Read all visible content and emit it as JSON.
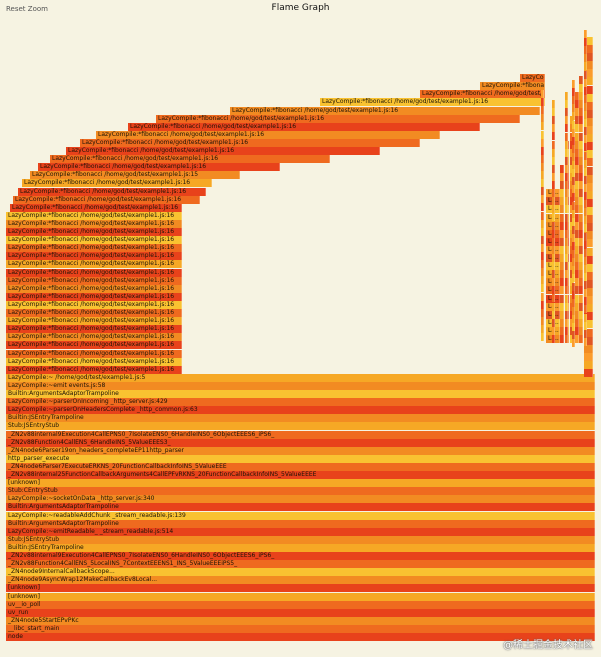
{
  "toolbar": {
    "reset_zoom_label": "Reset Zoom",
    "title": "Flame Graph"
  },
  "watermark": "@稀土掘金技术社区",
  "palette": [
    "#e8421b",
    "#ef6a1f",
    "#f28b22",
    "#f6a825",
    "#f9c231",
    "#e05622",
    "#fb9c2c"
  ],
  "frames_bottom_up": [
    {
      "label": "node",
      "shade": 0
    },
    {
      "label": "__libc_start_main",
      "shade": 1
    },
    {
      "label": "_ZN4node5StartEPvPKc",
      "shade": 2
    },
    {
      "label": "uv_run",
      "shade": 0
    },
    {
      "label": "uv__io_poll",
      "shade": 1
    },
    {
      "label": "[unknown]",
      "shade": 3
    },
    {
      "label": "[unknown]",
      "shade": 0
    },
    {
      "label": "_ZN4node9AsyncWrap12MakeCallbackEv8Local...",
      "shade": 2
    },
    {
      "label": "_ZN4node9InternalCallbackScope...",
      "shade": 4
    },
    {
      "label": "_ZN2v88Function4CallENS_5LocalINS_7ContextEEENS1_INS_5ValueEEEiPS5_",
      "shade": 1
    },
    {
      "label": "_ZN2v88internal9Execution4CallEPNS0_7IsolateENS0_6HandleINS0_6ObjectEEES6_iPS6_",
      "shade": 0
    },
    {
      "label": "Builtin:JSEntryTrampoline",
      "shade": 3
    },
    {
      "label": "Stub:JSEntryStub",
      "shade": 2
    },
    {
      "label": "LazyCompile:~emitReadable_ _stream_readable.js:514",
      "shade": 0
    },
    {
      "label": "Builtin:ArgumentsAdaptorTrampoline",
      "shade": 1
    },
    {
      "label": "LazyCompile:~readableAddChunk _stream_readable.js:139",
      "shade": 4
    },
    {
      "label": "Builtin:ArgumentsAdaptorTrampoline",
      "shade": 0
    },
    {
      "label": "LazyCompile:~socketOnData _http_server.js:340",
      "shade": 2
    },
    {
      "label": "Stub:CEntryStub",
      "shade": 1
    },
    {
      "label": "[unknown]",
      "shade": 3
    },
    {
      "label": "_ZN2v88internal25FunctionCallbackArguments4CallEPFvRKNS_20FunctionCallbackInfoINS_5ValueEEEE",
      "shade": 0
    },
    {
      "label": "_ZN4node6Parser7ExecuteERKNS_20FunctionCallbackInfoINS_5ValueEEE",
      "shade": 1
    },
    {
      "label": "http_parser_execute",
      "shade": 4
    },
    {
      "label": "_ZN4node6Parser19on_headers_completeEP11http_parser",
      "shade": 2
    },
    {
      "label": "_ZN2v88Function4CallENS_6HandleINS_5ValueEEES3_",
      "shade": 0
    },
    {
      "label": "_ZN2v88internal9Execution4CallEPNS0_7IsolateENS0_6HandleINS0_6ObjectEEES6_iPS6_",
      "shade": 1
    },
    {
      "label": "Stub:JSEntryStub",
      "shade": 3
    },
    {
      "label": "Builtin:JSEntryTrampoline",
      "shade": 2
    },
    {
      "label": "LazyCompile:~parserOnHeadersComplete _http_common.js:63",
      "shade": 0
    },
    {
      "label": "LazyCompile:~parserOnIncoming _http_server.js:429",
      "shade": 1
    },
    {
      "label": "Builtin:ArgumentsAdaptorTrampoline",
      "shade": 4
    },
    {
      "label": "LazyCompile:~emit events.js:58",
      "shade": 2
    },
    {
      "label": "LazyCompile:~ /home/god/test/example1.js:5",
      "shade": 3
    },
    {
      "label": "LazyCompile:*fibonacci /home/god/test/example1.js:16",
      "shade": 0
    },
    {
      "label": "LazyCompile:*fibonacci /home/god/test/example1.js:16",
      "shade": 4
    },
    {
      "label": "LazyCompile:*fibonacci /home/god/test/example1.js:16",
      "shade": 1
    },
    {
      "label": "LazyCompile:*fibonacci /home/god/test/example1.js:16",
      "shade": 0
    },
    {
      "label": "LazyCompile:*fibonacci /home/god/test/example1.js:16",
      "shade": 2
    },
    {
      "label": "LazyCompile:*fibonacci /home/god/test/example1.js:16",
      "shade": 0
    },
    {
      "label": "LazyCompile:*fibonacci /home/god/test/example1.js:16",
      "shade": 3
    },
    {
      "label": "LazyCompile:*fibonacci /home/god/test/example1.js:16",
      "shade": 1
    },
    {
      "label": "LazyCompile:*fibonacci /home/god/test/example1.js:16",
      "shade": 4
    },
    {
      "label": "LazyCompile:*fibonacci /home/god/test/example1.js:16",
      "shade": 0
    },
    {
      "label": "LazyCompile:*fibonacci /home/god/test/example1.js:16",
      "shade": 2
    },
    {
      "label": "LazyCompile:*fibonacci /home/god/test/example1.js:16",
      "shade": 1
    },
    {
      "label": "LazyCompile:*fibonacci /home/god/test/example1.js:16",
      "shade": 0
    },
    {
      "label": "LazyCompile:*fibonacci /home/god/test/example1.js:16",
      "shade": 3
    },
    {
      "label": "LazyCompile:*fibonacci /home/god/test/example1.js:16",
      "shade": 0
    },
    {
      "label": "LazyCompile:*fibonacci /home/god/test/example1.js:16",
      "shade": 1
    },
    {
      "label": "LazyCompile:*fibonacci /home/god/test/example1.js:16",
      "shade": 4
    },
    {
      "label": "LazyCompile:*fibonacci /home/god/test/example1.js:16",
      "shade": 0
    },
    {
      "label": "LazyCompile:*fibonacci /home/god/test/example1.js:16",
      "shade": 2
    },
    {
      "label": "LazyCompile:*fibonacci /home/god/test/example1.js:16",
      "shade": 4
    },
    {
      "label": "LazyCompile:*fibonacci /home/god/test/example1.js:16",
      "shade": 0
    },
    {
      "label": "LazyCompile:*fibonacci /home/god/test/example1.js:16",
      "shade": 1
    },
    {
      "label": "LazyCompile:*fibonacci /home/god/test/example1.js:16",
      "shade": 0
    },
    {
      "label": "LazyCompile:*fibonacci /home/god/test/example1.js:16",
      "shade": 3
    },
    {
      "label": "LazyCompile:*fibonacci /home/god/test/example1.js:15",
      "shade": 2
    },
    {
      "label": "LazyCompile:*fibonacci /home/god/test/example1.js:16",
      "shade": 0
    },
    {
      "label": "LazyCompile:*fibonacci /home/god/test/example1.js:16",
      "shade": 1
    },
    {
      "label": "LazyCompile:*fibonacci /home/god/test/example1.js:16",
      "shade": 0
    },
    {
      "label": "LazyCompile:*fibonacci /home/god/test/example1.js:16",
      "shade": 1
    },
    {
      "label": "LazyCompile:*fibonacci /home/god/test/example1.js:16",
      "shade": 2
    },
    {
      "label": "LazyCompile:*fibonacci /home/god/test/example1.js:16",
      "shade": 0
    },
    {
      "label": "LazyCompile:*fibonacci /home/god/test/example1.js:16",
      "shade": 1
    },
    {
      "label": "LazyCompile:*fibonacci /home/god/test/example1.js:16",
      "shade": 2
    },
    {
      "label": "LazyCompile:*fibonacci /home/god/test/example1.js:16",
      "shade": 4
    },
    {
      "label": "LazyCompile:*fibonacci /home/god/test/example1.js:16",
      "shade": 1
    },
    {
      "label": "LazyCompile:*fibonacci /home/god/test/example1.js:15",
      "shade": 2
    },
    {
      "label": "LazyCompile:*fibonacci /home/god/test/example1.js:16",
      "shade": 1
    }
  ],
  "side_labels": [
    "La...",
    "La...",
    "La...",
    "La...",
    "La...",
    "La...",
    "La...",
    "La...",
    "La...",
    "La...",
    "La...",
    "La...",
    "La...",
    "La...",
    "La...",
    "La...",
    "La...",
    "La...",
    "La..."
  ]
}
